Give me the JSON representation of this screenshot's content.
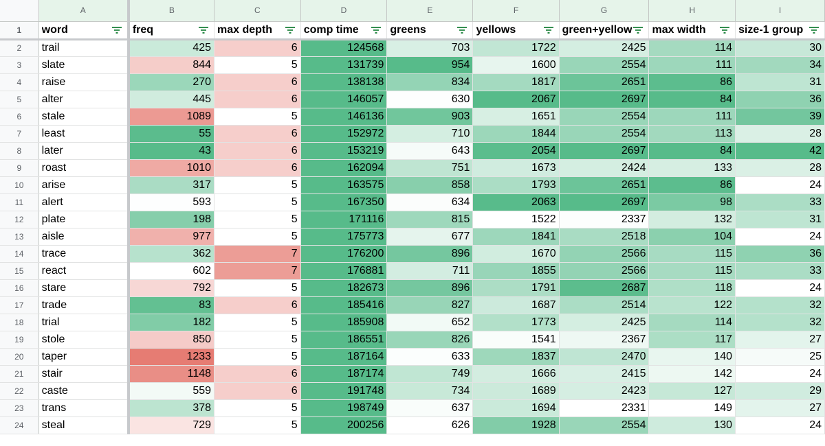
{
  "columns": [
    "A",
    "B",
    "C",
    "D",
    "E",
    "F",
    "G",
    "H",
    "I"
  ],
  "headers": [
    "word",
    "freq",
    "max depth",
    "comp time",
    "greens",
    "yellows",
    "green+yellow",
    "max width",
    "size-1 group"
  ],
  "rows": [
    {
      "num": "2",
      "word": "trail",
      "freq": 425,
      "max_depth": 6,
      "comp_time": 124568,
      "greens": 703,
      "yellows": 1722,
      "green_yellow": 2425,
      "max_width": 114,
      "size1": 30
    },
    {
      "num": "3",
      "word": "slate",
      "freq": 844,
      "max_depth": 5,
      "comp_time": 131739,
      "greens": 954,
      "yellows": 1600,
      "green_yellow": 2554,
      "max_width": 111,
      "size1": 34
    },
    {
      "num": "4",
      "word": "raise",
      "freq": 270,
      "max_depth": 6,
      "comp_time": 138138,
      "greens": 834,
      "yellows": 1817,
      "green_yellow": 2651,
      "max_width": 86,
      "size1": 31
    },
    {
      "num": "5",
      "word": "alter",
      "freq": 445,
      "max_depth": 6,
      "comp_time": 146057,
      "greens": 630,
      "yellows": 2067,
      "green_yellow": 2697,
      "max_width": 84,
      "size1": 36
    },
    {
      "num": "6",
      "word": "stale",
      "freq": 1089,
      "max_depth": 5,
      "comp_time": 146136,
      "greens": 903,
      "yellows": 1651,
      "green_yellow": 2554,
      "max_width": 111,
      "size1": 39
    },
    {
      "num": "7",
      "word": "least",
      "freq": 55,
      "max_depth": 6,
      "comp_time": 152972,
      "greens": 710,
      "yellows": 1844,
      "green_yellow": 2554,
      "max_width": 113,
      "size1": 28
    },
    {
      "num": "8",
      "word": "later",
      "freq": 43,
      "max_depth": 6,
      "comp_time": 153219,
      "greens": 643,
      "yellows": 2054,
      "green_yellow": 2697,
      "max_width": 84,
      "size1": 42
    },
    {
      "num": "9",
      "word": "roast",
      "freq": 1010,
      "max_depth": 6,
      "comp_time": 162094,
      "greens": 751,
      "yellows": 1673,
      "green_yellow": 2424,
      "max_width": 133,
      "size1": 28
    },
    {
      "num": "10",
      "word": "arise",
      "freq": 317,
      "max_depth": 5,
      "comp_time": 163575,
      "greens": 858,
      "yellows": 1793,
      "green_yellow": 2651,
      "max_width": 86,
      "size1": 24
    },
    {
      "num": "11",
      "word": "alert",
      "freq": 593,
      "max_depth": 5,
      "comp_time": 167350,
      "greens": 634,
      "yellows": 2063,
      "green_yellow": 2697,
      "max_width": 98,
      "size1": 33
    },
    {
      "num": "12",
      "word": "plate",
      "freq": 198,
      "max_depth": 5,
      "comp_time": 171116,
      "greens": 815,
      "yellows": 1522,
      "green_yellow": 2337,
      "max_width": 132,
      "size1": 31
    },
    {
      "num": "13",
      "word": "aisle",
      "freq": 977,
      "max_depth": 5,
      "comp_time": 175773,
      "greens": 677,
      "yellows": 1841,
      "green_yellow": 2518,
      "max_width": 104,
      "size1": 24
    },
    {
      "num": "14",
      "word": "trace",
      "freq": 362,
      "max_depth": 7,
      "comp_time": 176200,
      "greens": 896,
      "yellows": 1670,
      "green_yellow": 2566,
      "max_width": 115,
      "size1": 36
    },
    {
      "num": "15",
      "word": "react",
      "freq": 602,
      "max_depth": 7,
      "comp_time": 176881,
      "greens": 711,
      "yellows": 1855,
      "green_yellow": 2566,
      "max_width": 115,
      "size1": 33
    },
    {
      "num": "16",
      "word": "stare",
      "freq": 792,
      "max_depth": 5,
      "comp_time": 182673,
      "greens": 896,
      "yellows": 1791,
      "green_yellow": 2687,
      "max_width": 118,
      "size1": 24
    },
    {
      "num": "17",
      "word": "trade",
      "freq": 83,
      "max_depth": 6,
      "comp_time": 185416,
      "greens": 827,
      "yellows": 1687,
      "green_yellow": 2514,
      "max_width": 122,
      "size1": 32
    },
    {
      "num": "18",
      "word": "trial",
      "freq": 182,
      "max_depth": 5,
      "comp_time": 185908,
      "greens": 652,
      "yellows": 1773,
      "green_yellow": 2425,
      "max_width": 114,
      "size1": 32
    },
    {
      "num": "19",
      "word": "stole",
      "freq": 850,
      "max_depth": 5,
      "comp_time": 186551,
      "greens": 826,
      "yellows": 1541,
      "green_yellow": 2367,
      "max_width": 117,
      "size1": 27
    },
    {
      "num": "20",
      "word": "taper",
      "freq": 1233,
      "max_depth": 5,
      "comp_time": 187164,
      "greens": 633,
      "yellows": 1837,
      "green_yellow": 2470,
      "max_width": 140,
      "size1": 25
    },
    {
      "num": "21",
      "word": "stair",
      "freq": 1148,
      "max_depth": 6,
      "comp_time": 187174,
      "greens": 749,
      "yellows": 1666,
      "green_yellow": 2415,
      "max_width": 142,
      "size1": 24
    },
    {
      "num": "22",
      "word": "caste",
      "freq": 559,
      "max_depth": 6,
      "comp_time": 191748,
      "greens": 734,
      "yellows": 1689,
      "green_yellow": 2423,
      "max_width": 127,
      "size1": 29
    },
    {
      "num": "23",
      "word": "trans",
      "freq": 378,
      "max_depth": 5,
      "comp_time": 198749,
      "greens": 637,
      "yellows": 1694,
      "green_yellow": 2331,
      "max_width": 149,
      "size1": 27
    },
    {
      "num": "24",
      "word": "steal",
      "freq": 729,
      "max_depth": 5,
      "comp_time": 200256,
      "greens": 626,
      "yellows": 1928,
      "green_yellow": 2554,
      "max_width": 130,
      "size1": 24
    }
  ],
  "colors": {
    "green_high": "#57bb8a",
    "red_high": "#e67c73",
    "white": "#ffffff",
    "header_bg": "#e6f4ea",
    "filter_icon": "#188038"
  },
  "scales": {
    "freq": {
      "type": "white-to-red",
      "min": 43,
      "mid": 600,
      "max": 1233
    },
    "max_depth": {
      "type": "white-to-red",
      "min": 5,
      "max": 7
    },
    "comp_time": {
      "type": "solid-green"
    },
    "greens": {
      "type": "white-to-green",
      "min": 626,
      "max": 954
    },
    "yellows": {
      "type": "white-to-green",
      "min": 1522,
      "max": 2067
    },
    "green_yellow": {
      "type": "white-to-green",
      "min": 2331,
      "max": 2697
    },
    "max_width": {
      "type": "green-to-white",
      "min": 84,
      "max": 149
    },
    "size1": {
      "type": "white-to-green",
      "min": 24,
      "max": 42
    }
  }
}
